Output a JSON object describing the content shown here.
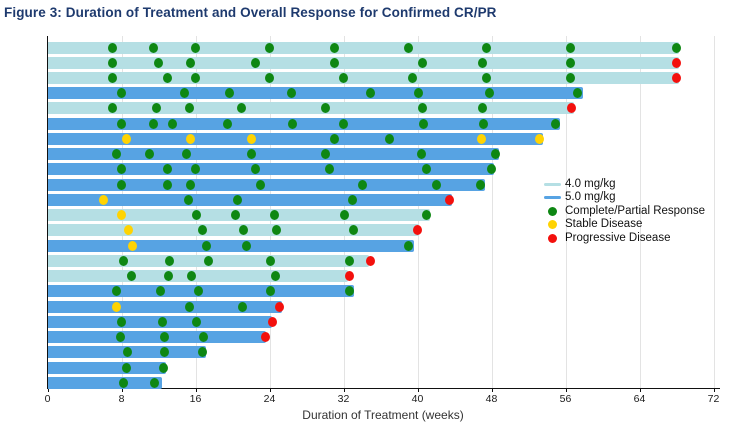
{
  "title": "Figure 3: Duration of Treatment and Overall Response for Confirmed CR/PR",
  "legend": {
    "items": [
      {
        "label": "4.0 mg/kg",
        "swatch": "line",
        "color": "#b5dfe4"
      },
      {
        "label": "5.0 mg/kg",
        "swatch": "line",
        "color": "#57a3e3"
      },
      {
        "label": "Complete/Partial Response",
        "swatch": "dot",
        "color": "#0e8713"
      },
      {
        "label": "Stable Disease",
        "swatch": "dot",
        "color": "#ffd302"
      },
      {
        "label": "Progressive Disease",
        "swatch": "dot",
        "color": "#f3100d"
      }
    ]
  },
  "chart_data": {
    "type": "bar",
    "subtype": "swimmer-plot",
    "xlabel": "Duration of Treatment (weeks)",
    "x_ticks": [
      0,
      8,
      16,
      24,
      32,
      40,
      48,
      56,
      64,
      72
    ],
    "xlim": [
      0,
      72.7
    ],
    "grid": "vertical",
    "legend_position": "middle-right",
    "dose_colors": {
      "4.0": "#b5dfe4",
      "5.0": "#57a3e3"
    },
    "event_colors": {
      "cr_pr": "#0e8713",
      "sd": "#ffd302",
      "pd": "#f3100d"
    },
    "event_labels": {
      "cr_pr": "Complete/Partial Response",
      "sd": "Stable Disease",
      "pd": "Progressive Disease"
    },
    "rows": [
      {
        "dose_mg_kg": "4.0",
        "duration_weeks": 68.3,
        "events": [
          {
            "week": 7,
            "type": "cr_pr"
          },
          {
            "week": 11.5,
            "type": "cr_pr"
          },
          {
            "week": 16,
            "type": "cr_pr"
          },
          {
            "week": 24,
            "type": "cr_pr"
          },
          {
            "week": 31,
            "type": "cr_pr"
          },
          {
            "week": 39,
            "type": "cr_pr"
          },
          {
            "week": 47.5,
            "type": "cr_pr"
          },
          {
            "week": 56.5,
            "type": "cr_pr"
          },
          {
            "week": 68,
            "type": "cr_pr"
          }
        ]
      },
      {
        "dose_mg_kg": "4.0",
        "duration_weeks": 68.3,
        "events": [
          {
            "week": 7,
            "type": "cr_pr"
          },
          {
            "week": 12,
            "type": "cr_pr"
          },
          {
            "week": 15.5,
            "type": "cr_pr"
          },
          {
            "week": 22.5,
            "type": "cr_pr"
          },
          {
            "week": 31,
            "type": "cr_pr"
          },
          {
            "week": 40.5,
            "type": "cr_pr"
          },
          {
            "week": 47,
            "type": "cr_pr"
          },
          {
            "week": 56.5,
            "type": "cr_pr"
          },
          {
            "week": 68,
            "type": "pd"
          }
        ]
      },
      {
        "dose_mg_kg": "4.0",
        "duration_weeks": 68.3,
        "events": [
          {
            "week": 7,
            "type": "cr_pr"
          },
          {
            "week": 13,
            "type": "cr_pr"
          },
          {
            "week": 16,
            "type": "cr_pr"
          },
          {
            "week": 24,
            "type": "cr_pr"
          },
          {
            "week": 32,
            "type": "cr_pr"
          },
          {
            "week": 39.5,
            "type": "cr_pr"
          },
          {
            "week": 47.5,
            "type": "cr_pr"
          },
          {
            "week": 56.5,
            "type": "cr_pr"
          },
          {
            "week": 68,
            "type": "pd"
          }
        ]
      },
      {
        "dose_mg_kg": "5.0",
        "duration_weeks": 57.9,
        "events": [
          {
            "week": 8,
            "type": "cr_pr"
          },
          {
            "week": 14.8,
            "type": "cr_pr"
          },
          {
            "week": 19.7,
            "type": "cr_pr"
          },
          {
            "week": 26.4,
            "type": "cr_pr"
          },
          {
            "week": 34.9,
            "type": "cr_pr"
          },
          {
            "week": 40.1,
            "type": "cr_pr"
          },
          {
            "week": 47.8,
            "type": "cr_pr"
          },
          {
            "week": 57.3,
            "type": "cr_pr"
          }
        ]
      },
      {
        "dose_mg_kg": "4.0",
        "duration_weeks": 56.9,
        "events": [
          {
            "week": 7,
            "type": "cr_pr"
          },
          {
            "week": 11.8,
            "type": "cr_pr"
          },
          {
            "week": 15.4,
            "type": "cr_pr"
          },
          {
            "week": 21,
            "type": "cr_pr"
          },
          {
            "week": 30,
            "type": "cr_pr"
          },
          {
            "week": 40.5,
            "type": "cr_pr"
          },
          {
            "week": 47,
            "type": "cr_pr"
          },
          {
            "week": 56.7,
            "type": "pd"
          }
        ]
      },
      {
        "dose_mg_kg": "5.0",
        "duration_weeks": 55.4,
        "events": [
          {
            "week": 8,
            "type": "cr_pr"
          },
          {
            "week": 11.5,
            "type": "cr_pr"
          },
          {
            "week": 13.5,
            "type": "cr_pr"
          },
          {
            "week": 19.5,
            "type": "cr_pr"
          },
          {
            "week": 26.5,
            "type": "cr_pr"
          },
          {
            "week": 32,
            "type": "cr_pr"
          },
          {
            "week": 40.7,
            "type": "cr_pr"
          },
          {
            "week": 47.1,
            "type": "cr_pr"
          },
          {
            "week": 54.9,
            "type": "cr_pr"
          }
        ]
      },
      {
        "dose_mg_kg": "5.0",
        "duration_weeks": 53.6,
        "events": [
          {
            "week": 8.5,
            "type": "sd"
          },
          {
            "week": 15.5,
            "type": "sd"
          },
          {
            "week": 22,
            "type": "sd"
          },
          {
            "week": 31,
            "type": "cr_pr"
          },
          {
            "week": 37,
            "type": "cr_pr"
          },
          {
            "week": 46.9,
            "type": "sd"
          },
          {
            "week": 53.2,
            "type": "sd"
          }
        ]
      },
      {
        "dose_mg_kg": "5.0",
        "duration_weeks": 48.8,
        "events": [
          {
            "week": 7.5,
            "type": "cr_pr"
          },
          {
            "week": 11,
            "type": "cr_pr"
          },
          {
            "week": 15,
            "type": "cr_pr"
          },
          {
            "week": 22,
            "type": "cr_pr"
          },
          {
            "week": 30,
            "type": "cr_pr"
          },
          {
            "week": 40.4,
            "type": "cr_pr"
          },
          {
            "week": 48.4,
            "type": "cr_pr"
          }
        ]
      },
      {
        "dose_mg_kg": "5.0",
        "duration_weeks": 48.3,
        "events": [
          {
            "week": 8,
            "type": "cr_pr"
          },
          {
            "week": 13,
            "type": "cr_pr"
          },
          {
            "week": 16,
            "type": "cr_pr"
          },
          {
            "week": 22.5,
            "type": "cr_pr"
          },
          {
            "week": 30.5,
            "type": "cr_pr"
          },
          {
            "week": 41,
            "type": "cr_pr"
          },
          {
            "week": 48,
            "type": "cr_pr"
          }
        ]
      },
      {
        "dose_mg_kg": "5.0",
        "duration_weeks": 47.3,
        "events": [
          {
            "week": 8,
            "type": "cr_pr"
          },
          {
            "week": 13,
            "type": "cr_pr"
          },
          {
            "week": 15.5,
            "type": "cr_pr"
          },
          {
            "week": 23,
            "type": "cr_pr"
          },
          {
            "week": 34,
            "type": "cr_pr"
          },
          {
            "week": 42,
            "type": "cr_pr"
          },
          {
            "week": 46.8,
            "type": "cr_pr"
          }
        ]
      },
      {
        "dose_mg_kg": "5.0",
        "duration_weeks": 43.7,
        "events": [
          {
            "week": 6,
            "type": "sd"
          },
          {
            "week": 15.2,
            "type": "cr_pr"
          },
          {
            "week": 20.5,
            "type": "cr_pr"
          },
          {
            "week": 33,
            "type": "cr_pr"
          },
          {
            "week": 43.5,
            "type": "pd"
          }
        ]
      },
      {
        "dose_mg_kg": "4.0",
        "duration_weeks": 41.4,
        "events": [
          {
            "week": 8,
            "type": "sd"
          },
          {
            "week": 16.1,
            "type": "cr_pr"
          },
          {
            "week": 20.3,
            "type": "cr_pr"
          },
          {
            "week": 24.5,
            "type": "cr_pr"
          },
          {
            "week": 32.1,
            "type": "cr_pr"
          },
          {
            "week": 41,
            "type": "cr_pr"
          }
        ]
      },
      {
        "dose_mg_kg": "4.0",
        "duration_weeks": 40.2,
        "events": [
          {
            "week": 8.8,
            "type": "sd"
          },
          {
            "week": 16.8,
            "type": "cr_pr"
          },
          {
            "week": 21.2,
            "type": "cr_pr"
          },
          {
            "week": 24.8,
            "type": "cr_pr"
          },
          {
            "week": 33.1,
            "type": "cr_pr"
          },
          {
            "week": 40,
            "type": "pd"
          }
        ]
      },
      {
        "dose_mg_kg": "5.0",
        "duration_weeks": 39.6,
        "events": [
          {
            "week": 9.2,
            "type": "sd"
          },
          {
            "week": 17.2,
            "type": "cr_pr"
          },
          {
            "week": 21.5,
            "type": "cr_pr"
          },
          {
            "week": 39,
            "type": "cr_pr"
          }
        ]
      },
      {
        "dose_mg_kg": "4.0",
        "duration_weeks": 34.8,
        "events": [
          {
            "week": 8.2,
            "type": "cr_pr"
          },
          {
            "week": 13.2,
            "type": "cr_pr"
          },
          {
            "week": 17.4,
            "type": "cr_pr"
          },
          {
            "week": 24.1,
            "type": "cr_pr"
          },
          {
            "week": 32.7,
            "type": "cr_pr"
          },
          {
            "week": 34.9,
            "type": "pd"
          }
        ]
      },
      {
        "dose_mg_kg": "4.0",
        "duration_weeks": 32.5,
        "events": [
          {
            "week": 9.1,
            "type": "cr_pr"
          },
          {
            "week": 13.1,
            "type": "cr_pr"
          },
          {
            "week": 15.6,
            "type": "cr_pr"
          },
          {
            "week": 24.6,
            "type": "cr_pr"
          },
          {
            "week": 32.7,
            "type": "pd"
          }
        ]
      },
      {
        "dose_mg_kg": "5.0",
        "duration_weeks": 33.1,
        "events": [
          {
            "week": 7.5,
            "type": "cr_pr"
          },
          {
            "week": 12.2,
            "type": "cr_pr"
          },
          {
            "week": 16.3,
            "type": "cr_pr"
          },
          {
            "week": 24.1,
            "type": "cr_pr"
          },
          {
            "week": 32.6,
            "type": "cr_pr"
          }
        ]
      },
      {
        "dose_mg_kg": "5.0",
        "duration_weeks": 25.3,
        "events": [
          {
            "week": 7.5,
            "type": "sd"
          },
          {
            "week": 15.4,
            "type": "cr_pr"
          },
          {
            "week": 21.1,
            "type": "cr_pr"
          },
          {
            "week": 25.1,
            "type": "pd"
          }
        ]
      },
      {
        "dose_mg_kg": "5.0",
        "duration_weeks": 24.3,
        "events": [
          {
            "week": 8,
            "type": "cr_pr"
          },
          {
            "week": 12.4,
            "type": "cr_pr"
          },
          {
            "week": 16.1,
            "type": "cr_pr"
          },
          {
            "week": 24.3,
            "type": "pd"
          }
        ]
      },
      {
        "dose_mg_kg": "5.0",
        "duration_weeks": 23.6,
        "events": [
          {
            "week": 7.9,
            "type": "cr_pr"
          },
          {
            "week": 12.7,
            "type": "cr_pr"
          },
          {
            "week": 16.9,
            "type": "cr_pr"
          },
          {
            "week": 23.6,
            "type": "pd"
          }
        ]
      },
      {
        "dose_mg_kg": "5.0",
        "duration_weeks": 17.1,
        "events": [
          {
            "week": 8.7,
            "type": "cr_pr"
          },
          {
            "week": 12.7,
            "type": "cr_pr"
          },
          {
            "week": 16.8,
            "type": "cr_pr"
          }
        ]
      },
      {
        "dose_mg_kg": "5.0",
        "duration_weeks": 12.8,
        "events": [
          {
            "week": 8.5,
            "type": "cr_pr"
          },
          {
            "week": 12.5,
            "type": "cr_pr"
          }
        ]
      },
      {
        "dose_mg_kg": "5.0",
        "duration_weeks": 12.4,
        "events": [
          {
            "week": 8.2,
            "type": "cr_pr"
          },
          {
            "week": 11.6,
            "type": "cr_pr"
          }
        ]
      }
    ]
  }
}
